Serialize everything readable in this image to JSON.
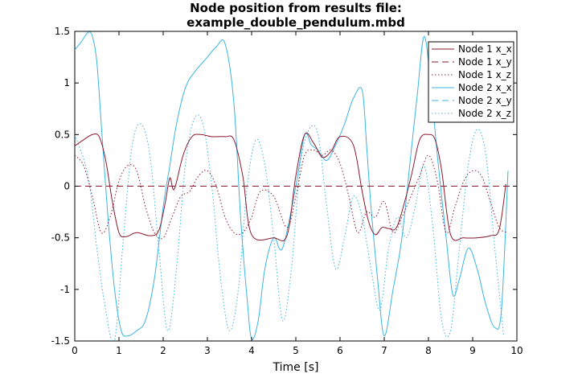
{
  "chart_data": {
    "type": "line",
    "title_line1": "Node position from results file:",
    "title_line2": "example_double_pendulum.mbd",
    "xlabel": "Time [s]",
    "ylabel": "",
    "xlim": [
      0,
      10
    ],
    "ylim": [
      -1.5,
      1.5
    ],
    "xticks": [
      0,
      1,
      2,
      3,
      4,
      5,
      6,
      7,
      8,
      9,
      10
    ],
    "yticks": [
      -1.5,
      -1,
      -0.5,
      0,
      0.5,
      1,
      1.5
    ],
    "xtick_labels": [
      "0",
      "1",
      "2",
      "3",
      "4",
      "5",
      "6",
      "7",
      "8",
      "9",
      "10"
    ],
    "ytick_labels": [
      "-1.5",
      "-1",
      "-0.5",
      "0",
      "0.5",
      "1",
      "1.5"
    ],
    "grid": false,
    "legend_position": "top-right",
    "series": [
      {
        "name": "Node 1 x_x",
        "color": "#8b1a2e",
        "dash": "solid",
        "x": [
          0,
          0.2,
          0.4,
          0.55,
          0.7,
          0.85,
          1.0,
          1.15,
          1.4,
          1.7,
          1.9,
          2.05,
          2.15,
          2.25,
          2.45,
          2.65,
          2.85,
          3.1,
          3.4,
          3.6,
          3.8,
          4.0,
          4.5,
          4.8,
          5.0,
          5.2,
          5.4,
          5.6,
          5.8,
          6.0,
          6.3,
          6.5,
          6.65,
          6.8,
          6.95,
          7.1,
          7.3,
          7.6,
          7.8,
          8.0,
          8.15,
          8.3,
          8.5,
          8.8,
          9.1,
          9.4,
          9.6,
          9.75
        ],
        "y": [
          0.39,
          0.45,
          0.5,
          0.48,
          0.25,
          -0.15,
          -0.45,
          -0.49,
          -0.45,
          -0.48,
          -0.43,
          -0.15,
          0.08,
          -0.03,
          0.3,
          0.48,
          0.5,
          0.48,
          0.48,
          0.45,
          0.1,
          -0.47,
          -0.5,
          -0.48,
          0.1,
          0.5,
          0.42,
          0.28,
          0.34,
          0.48,
          0.4,
          -0.05,
          -0.35,
          -0.47,
          -0.4,
          -0.41,
          -0.38,
          0.08,
          0.45,
          0.5,
          0.45,
          0.15,
          -0.47,
          -0.5,
          -0.5,
          -0.48,
          -0.42,
          0.02
        ]
      },
      {
        "name": "Node 1 x_y",
        "color": "#8b1a2e",
        "dash": "dashed",
        "x": [
          0,
          10
        ],
        "y": [
          0,
          0
        ]
      },
      {
        "name": "Node 1 x_z",
        "color": "#8b1a2e",
        "dash": "dotted",
        "x": [
          0,
          0.2,
          0.4,
          0.6,
          0.8,
          1.0,
          1.2,
          1.4,
          1.6,
          1.8,
          2.0,
          2.2,
          2.4,
          2.6,
          2.8,
          3.0,
          3.2,
          3.4,
          3.6,
          3.8,
          4.0,
          4.2,
          4.5,
          4.8,
          5.0,
          5.2,
          5.4,
          5.6,
          5.8,
          6.0,
          6.2,
          6.4,
          6.6,
          6.8,
          7.0,
          7.2,
          7.4,
          7.6,
          7.8,
          8.0,
          8.2,
          8.4,
          8.6,
          8.8,
          9.0,
          9.2,
          9.4,
          9.6,
          9.8
        ],
        "y": [
          0.3,
          0.2,
          -0.1,
          -0.45,
          -0.3,
          0.05,
          0.2,
          0.15,
          -0.2,
          -0.45,
          -0.5,
          -0.3,
          -0.1,
          -0.05,
          0.1,
          0.15,
          0.0,
          -0.3,
          -0.45,
          -0.45,
          -0.3,
          -0.05,
          -0.1,
          -0.4,
          -0.1,
          0.3,
          0.35,
          0.3,
          0.35,
          0.22,
          -0.1,
          -0.45,
          -0.25,
          -0.3,
          -0.15,
          -0.45,
          -0.3,
          -0.1,
          0.1,
          0.3,
          0.05,
          -0.45,
          -0.2,
          0.05,
          0.15,
          0.1,
          -0.15,
          -0.4,
          -0.45
        ]
      },
      {
        "name": "Node 2 x_x",
        "color": "#3bb4e0",
        "dash": "solid",
        "x": [
          0,
          0.15,
          0.3,
          0.4,
          0.5,
          0.6,
          0.75,
          0.9,
          1.05,
          1.2,
          1.4,
          1.6,
          1.8,
          2.0,
          2.15,
          2.3,
          2.5,
          2.7,
          3.0,
          3.2,
          3.4,
          3.6,
          3.75,
          3.9,
          4.0,
          4.15,
          4.3,
          4.5,
          4.7,
          5.0,
          5.2,
          5.35,
          5.5,
          5.7,
          5.9,
          6.1,
          6.3,
          6.5,
          6.6,
          6.7,
          6.85,
          7.0,
          7.2,
          7.4,
          7.6,
          7.75,
          7.9,
          8.05,
          8.2,
          8.4,
          8.55,
          8.7,
          8.9,
          9.1,
          9.3,
          9.5,
          9.65,
          9.8
        ],
        "y": [
          1.32,
          1.4,
          1.49,
          1.45,
          1.2,
          0.6,
          -0.3,
          -1.0,
          -1.4,
          -1.45,
          -1.4,
          -1.3,
          -0.9,
          -0.2,
          0.2,
          0.6,
          0.95,
          1.1,
          1.25,
          1.35,
          1.38,
          0.8,
          -0.3,
          -1.1,
          -1.48,
          -1.3,
          -0.8,
          -0.5,
          -0.6,
          0.0,
          0.5,
          0.4,
          0.35,
          0.25,
          0.4,
          0.6,
          0.85,
          0.93,
          0.4,
          -0.2,
          -0.9,
          -1.45,
          -1.0,
          -0.5,
          0.3,
          0.9,
          1.45,
          1.0,
          0.3,
          -0.5,
          -1.05,
          -0.9,
          -0.6,
          -0.8,
          -1.15,
          -1.37,
          -1.2,
          0.15
        ]
      },
      {
        "name": "Node 2 x_y",
        "color": "#3bb4e0",
        "dash": "dashed",
        "x": [
          0,
          10
        ],
        "y": [
          0,
          0
        ]
      },
      {
        "name": "Node 2 x_z",
        "color": "#3bb4e0",
        "dash": "dotted",
        "x": [
          0,
          0.3,
          0.5,
          0.7,
          0.9,
          1.1,
          1.3,
          1.5,
          1.7,
          1.9,
          2.1,
          2.3,
          2.5,
          2.7,
          2.9,
          3.1,
          3.3,
          3.5,
          3.7,
          3.9,
          4.1,
          4.3,
          4.5,
          4.7,
          4.9,
          5.1,
          5.3,
          5.5,
          5.7,
          5.9,
          6.1,
          6.3,
          6.5,
          6.7,
          6.9,
          7.1,
          7.3,
          7.5,
          7.7,
          7.9,
          8.1,
          8.3,
          8.5,
          8.7,
          8.9,
          9.1,
          9.3,
          9.5,
          9.7
        ],
        "y": [
          0.5,
          0.1,
          -0.6,
          -1.2,
          -1.5,
          -0.5,
          0.4,
          0.6,
          0.3,
          -0.6,
          -1.4,
          -0.8,
          0.2,
          0.65,
          0.6,
          0.0,
          -0.9,
          -1.4,
          -1.0,
          0.0,
          0.45,
          0.2,
          -0.5,
          -1.3,
          -0.8,
          0.2,
          0.55,
          0.5,
          -0.2,
          -0.8,
          -0.5,
          -0.1,
          -0.3,
          -0.8,
          -1.2,
          -0.6,
          -0.3,
          -0.5,
          -0.2,
          0.2,
          -0.4,
          -1.3,
          -1.4,
          -0.6,
          0.2,
          0.55,
          0.3,
          -0.6,
          -1.45
        ]
      }
    ]
  }
}
